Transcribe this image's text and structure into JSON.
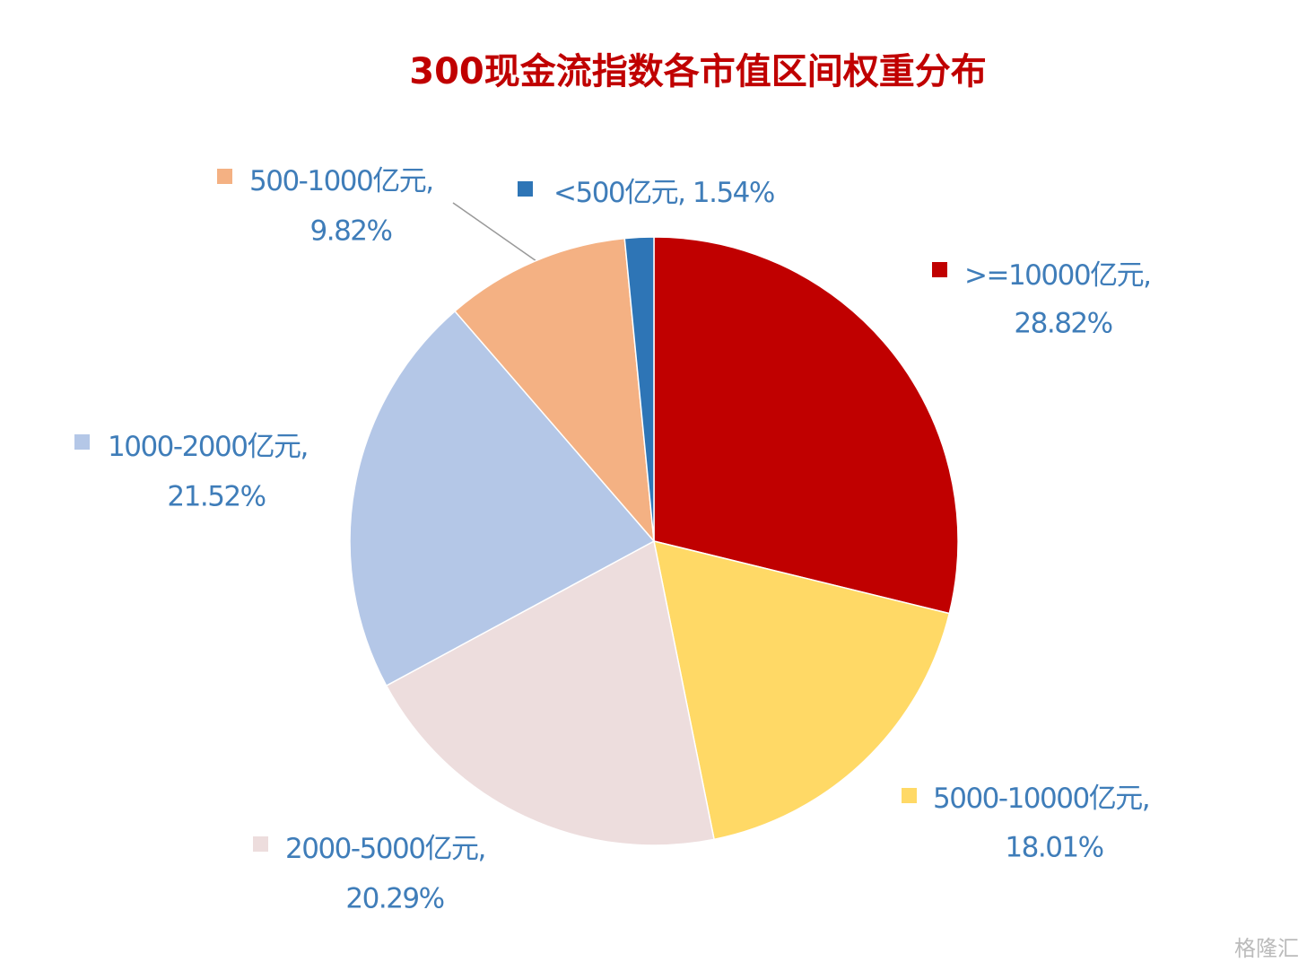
{
  "chart_data": {
    "type": "pie",
    "title": "300现金流指数各市值区间权重分布",
    "categories": [
      ">=10000亿元",
      "5000-10000亿元",
      "2000-5000亿元",
      "1000-2000亿元",
      "500-1000亿元",
      "<500亿元"
    ],
    "values": [
      28.82,
      18.01,
      20.29,
      21.52,
      9.82,
      1.54
    ],
    "value_labels": [
      "28.82%",
      "18.01%",
      "20.29%",
      "21.52%",
      "9.82%",
      "1.54%"
    ],
    "label_separator": ", ",
    "colors": [
      "#C00000",
      "#FFD966",
      "#EDDDDD",
      "#B4C7E7",
      "#F4B183",
      "#2E75B6"
    ],
    "watermark": "格隆汇"
  }
}
